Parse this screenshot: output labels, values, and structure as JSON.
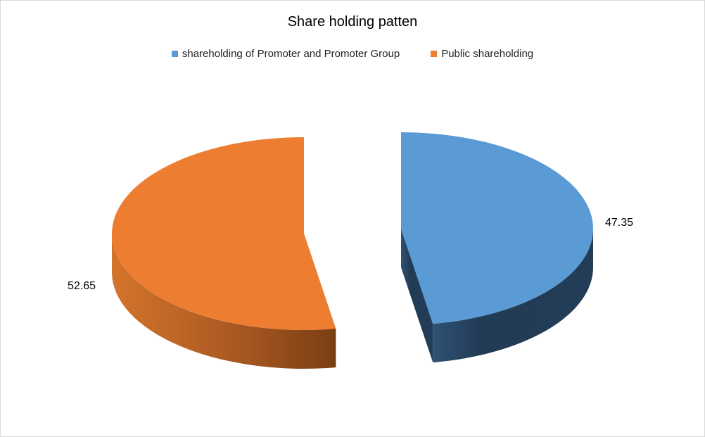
{
  "chart_data": {
    "type": "pie",
    "variant": "3d-exploded",
    "title": "Share holding patten",
    "legend_position": "top",
    "slices": [
      {
        "label": "shareholding of Promoter and Promoter Group",
        "value": 47.35,
        "value_label": "47.35",
        "color": "#5b9bd5",
        "side_color": "#243f5c"
      },
      {
        "label": "Public shareholding",
        "value": 52.65,
        "value_label": "52.65",
        "color": "#ed7d31",
        "side_color": "#a8561f"
      }
    ]
  }
}
